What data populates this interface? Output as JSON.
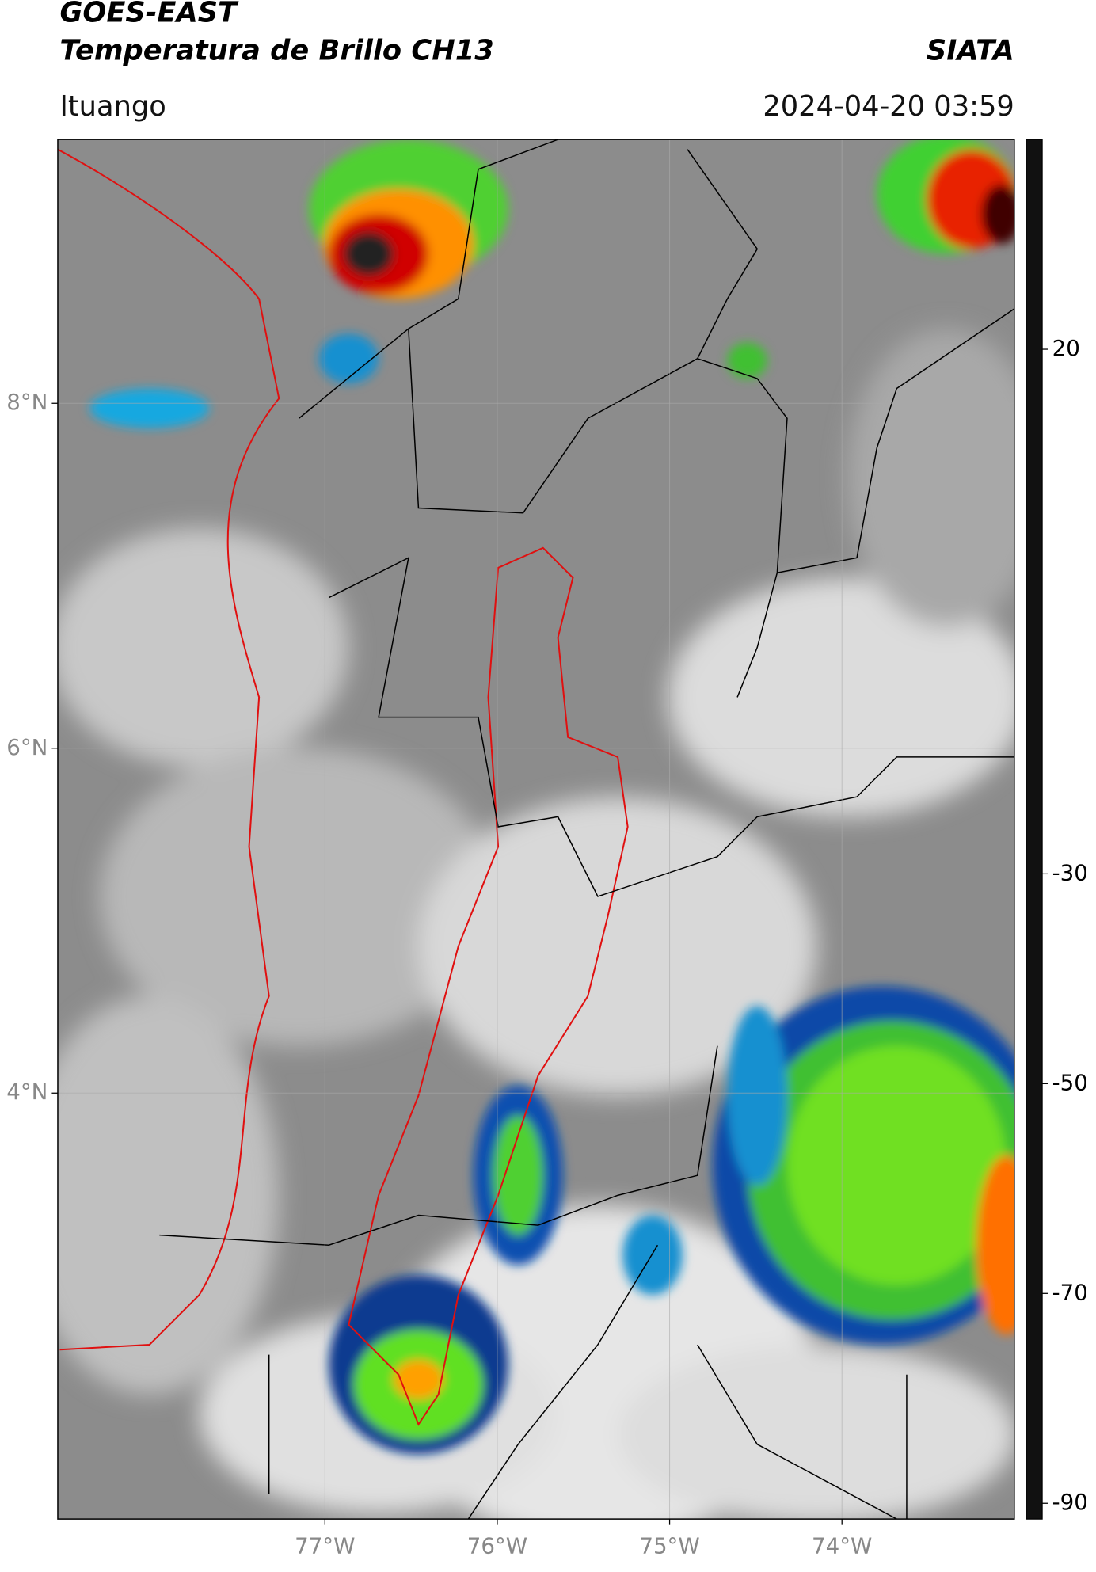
{
  "header": {
    "line1": "GOES-EAST",
    "line2": "Temperatura de Brillo CH13",
    "org": "SIATA",
    "place": "Ituango",
    "datetime": "2024-04-20 03:59"
  },
  "map": {
    "lat_lim": [
      1.53,
      9.53
    ],
    "lon_lim": [
      -78.55,
      -73.0
    ],
    "lat_ticks": [
      {
        "value": 8,
        "label": "8°N"
      },
      {
        "value": 6,
        "label": "6°N"
      },
      {
        "value": 4,
        "label": "4°N"
      }
    ],
    "lon_ticks": [
      {
        "value": -77,
        "label": "77°W"
      },
      {
        "value": -76,
        "label": "76°W"
      },
      {
        "value": -75,
        "label": "75°W"
      },
      {
        "value": -74,
        "label": "74°W"
      }
    ],
    "grid": true
  },
  "colorbar": {
    "lim": [
      -91.5,
      40
    ],
    "ticks": [
      20,
      -30,
      -50,
      -70,
      -90
    ],
    "stops": [
      {
        "value": 40,
        "color": "#111111"
      },
      {
        "value": 20,
        "color": "#7a7a7a"
      },
      {
        "value": -20,
        "color": "#ffffff"
      },
      {
        "value": -20.01,
        "color": "#18c8e8"
      },
      {
        "value": -27,
        "color": "#0a3aa0"
      },
      {
        "value": -31,
        "color": "#0a2a70"
      },
      {
        "value": -35,
        "color": "#10a040"
      },
      {
        "value": -44,
        "color": "#60e020"
      },
      {
        "value": -50,
        "color": "#f0e000"
      },
      {
        "value": -56,
        "color": "#ff6000"
      },
      {
        "value": -62,
        "color": "#e00000"
      },
      {
        "value": -67,
        "color": "#600000"
      },
      {
        "value": -70,
        "color": "#000000"
      },
      {
        "value": -76,
        "color": "#c0c0c0"
      },
      {
        "value": -78,
        "color": "#f0f0f0"
      },
      {
        "value": -79,
        "color": "#ff70d0"
      },
      {
        "value": -88,
        "color": "#a020a0"
      },
      {
        "value": -88.01,
        "color": "#ffffff"
      },
      {
        "value": -91.5,
        "color": "#ffffff"
      }
    ]
  }
}
